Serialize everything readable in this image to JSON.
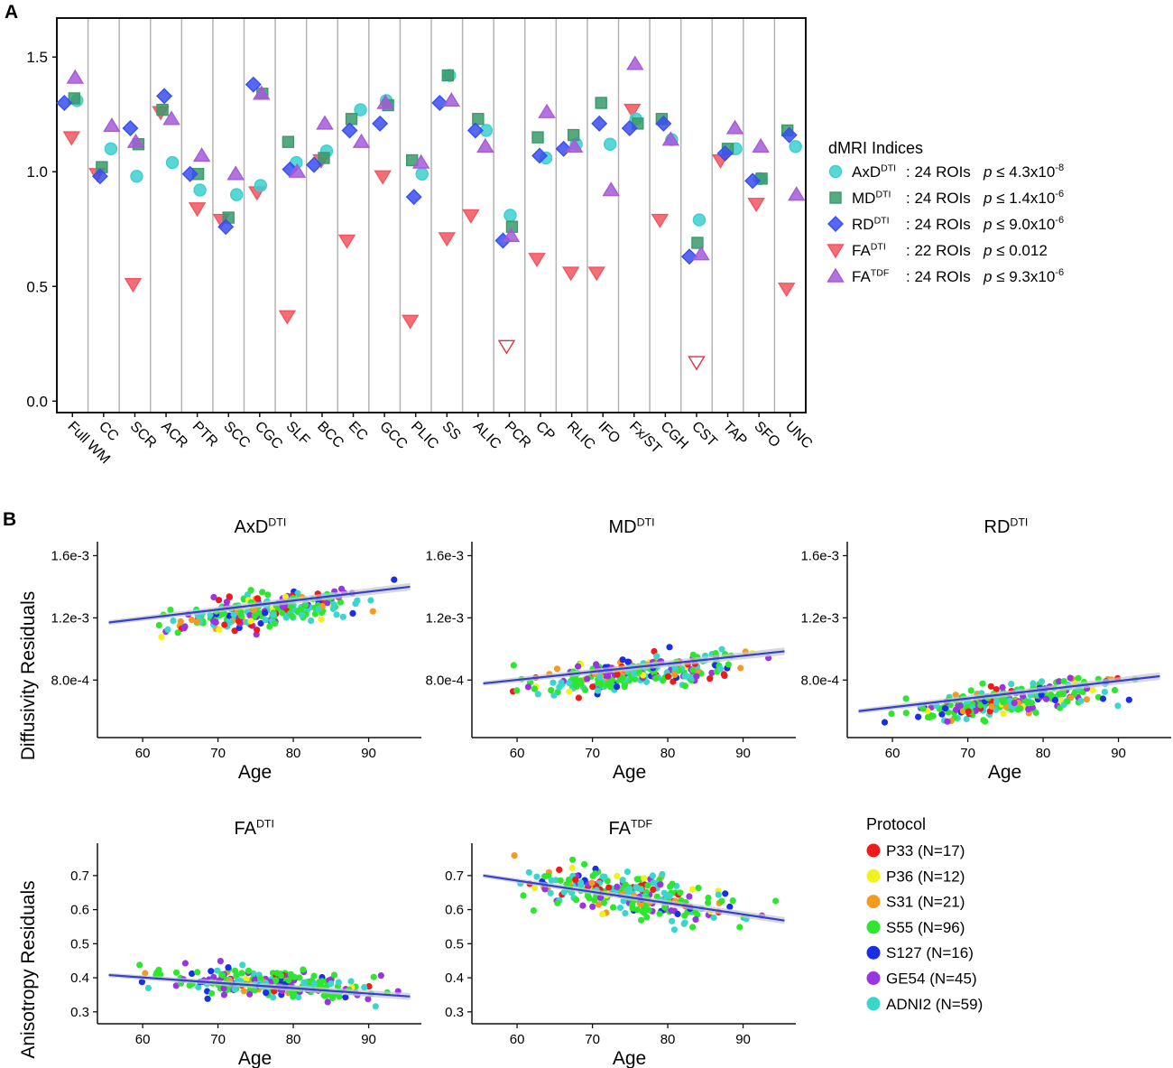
{
  "panel_labels": {
    "a": "A",
    "b": "B"
  },
  "colors": {
    "AxD": "#3ccfcf",
    "MD": "#3a9a6a",
    "RD": "#3a4ef0",
    "FAdti": "#f25560",
    "FAtdf": "#a55bd8",
    "fit_line": "#3340d0",
    "fit_band": "#c8c8cc",
    "grid": "#b3b3b3"
  },
  "chart_data": [
    {
      "type": "scatter",
      "id": "panel-a",
      "title": "",
      "xlabel": "",
      "ylabel": "",
      "ylim": [
        -0.05,
        1.67
      ],
      "y_ticks": [
        "0.0",
        "0.5",
        "1.0",
        "1.5"
      ],
      "y_tick_values": [
        0,
        0.5,
        1.0,
        1.5
      ],
      "categories": [
        "Full WM",
        "CC",
        "SCR",
        "ACR",
        "PTR",
        "SCC",
        "CGC",
        "SLF",
        "BCC",
        "EC",
        "GCC",
        "PLIC",
        "SS",
        "ALIC",
        "PCR",
        "CP",
        "RLIC",
        "IFO",
        "Fx/ST",
        "CGH",
        "CST",
        "TAP",
        "SFO",
        "UNC"
      ],
      "legend": {
        "title": "dMRI Indices",
        "entries": [
          {
            "key": "AxD",
            "base": "AxD",
            "sup": "DTI",
            "rois": ": 24 ROIs",
            "p_prefix": "p",
            "p_text": " ≤ 4.3x10",
            "p_exp": "-8"
          },
          {
            "key": "MD",
            "base": "MD",
            "sup": "DTI",
            "rois": ": 24 ROIs",
            "p_prefix": "p",
            "p_text": " ≤ 1.4x10",
            "p_exp": "-6"
          },
          {
            "key": "RD",
            "base": "RD",
            "sup": "DTI",
            "rois": ": 24 ROIs",
            "p_prefix": "p",
            "p_text": " ≤ 9.0x10",
            "p_exp": "-6"
          },
          {
            "key": "FAdti",
            "base": "FA",
            "sup": "DTI",
            "rois": ": 22 ROIs",
            "p_prefix": "p",
            "p_text": " ≤ 0.012",
            "p_exp": ""
          },
          {
            "key": "FAtdf",
            "base": "FA",
            "sup": "TDF",
            "rois": ": 24 ROIs",
            "p_prefix": "p",
            "p_text": " ≤ 9.3x10",
            "p_exp": "-6"
          }
        ]
      },
      "series": [
        {
          "name": "AxD",
          "shape": "circle",
          "values": [
            1.31,
            1.1,
            0.98,
            1.04,
            0.92,
            0.9,
            0.94,
            1.04,
            1.09,
            1.27,
            1.31,
            0.99,
            1.42,
            1.18,
            0.81,
            1.06,
            1.12,
            1.12,
            1.23,
            1.14,
            0.79,
            1.1,
            0.97,
            1.11
          ]
        },
        {
          "name": "MD",
          "shape": "square",
          "values": [
            1.32,
            1.02,
            1.12,
            1.27,
            0.99,
            0.8,
            1.34,
            1.13,
            1.06,
            1.23,
            1.29,
            1.05,
            1.42,
            1.23,
            0.76,
            1.15,
            1.16,
            1.3,
            1.21,
            1.23,
            0.69,
            1.1,
            0.97,
            1.18
          ]
        },
        {
          "name": "RD",
          "shape": "diamond",
          "values": [
            1.3,
            0.98,
            1.19,
            1.33,
            0.99,
            0.76,
            1.38,
            1.01,
            1.03,
            1.18,
            1.21,
            0.89,
            1.3,
            1.18,
            0.7,
            1.07,
            1.1,
            1.21,
            1.19,
            1.21,
            0.63,
            1.08,
            0.96,
            1.16
          ]
        },
        {
          "name": "FAdti",
          "shape": "triangle-down",
          "values": [
            1.15,
            0.99,
            0.51,
            1.26,
            0.84,
            0.79,
            0.91,
            0.37,
            1.05,
            0.7,
            0.98,
            0.35,
            0.71,
            0.81,
            0.24,
            0.62,
            0.56,
            0.56,
            1.27,
            0.79,
            0.17,
            1.05,
            0.86,
            0.49
          ],
          "hollow_index": [
            14,
            20
          ]
        },
        {
          "name": "FAtdf",
          "shape": "triangle-up",
          "values": [
            1.41,
            1.2,
            1.13,
            1.23,
            1.07,
            0.99,
            1.34,
            1.0,
            1.21,
            1.13,
            1.3,
            1.04,
            1.31,
            1.11,
            0.72,
            1.26,
            1.11,
            0.92,
            1.47,
            1.14,
            0.64,
            1.19,
            1.11,
            0.9
          ]
        }
      ]
    },
    {
      "type": "scatter",
      "id": "axd",
      "title_base": "AxD",
      "title_sup": "DTI",
      "xlabel": "Age",
      "ylabel": "Diffusivity Residuals",
      "xlim": [
        54,
        97
      ],
      "ylim": [
        0.00043,
        0.00169
      ],
      "x_ticks": [
        "60",
        "70",
        "80",
        "90"
      ],
      "x_tick_values": [
        60,
        70,
        80,
        90
      ],
      "y_ticks": [
        "8.0e-4",
        "1.2e-3",
        "1.6e-3"
      ],
      "y_tick_values": [
        0.0008,
        0.0012,
        0.0016
      ],
      "fit": {
        "x": [
          55.5,
          95.5
        ],
        "y": [
          0.00117,
          0.0014
        ]
      },
      "center": 0.00122,
      "spread": 7.5e-05,
      "slope": 5.75e-06,
      "seed": 11
    },
    {
      "type": "scatter",
      "id": "md",
      "title_base": "MD",
      "title_sup": "DTI",
      "xlabel": "Age",
      "ylabel": "",
      "xlim": [
        54,
        97
      ],
      "ylim": [
        0.00043,
        0.00169
      ],
      "x_ticks": [
        "60",
        "70",
        "80",
        "90"
      ],
      "x_tick_values": [
        60,
        70,
        80,
        90
      ],
      "y_ticks": [
        "8.0e-4",
        "1.2e-3",
        "1.6e-3"
      ],
      "y_tick_values": [
        0.0008,
        0.0012,
        0.0016
      ],
      "fit": {
        "x": [
          55.5,
          95.5
        ],
        "y": [
          0.000778,
          0.000985
        ]
      },
      "center": 0.00082,
      "spread": 7.2e-05,
      "slope": 5.2e-06,
      "seed": 23
    },
    {
      "type": "scatter",
      "id": "rd",
      "title_base": "RD",
      "title_sup": "DTI",
      "xlabel": "Age",
      "ylabel": "",
      "xlim": [
        54,
        97
      ],
      "ylim": [
        0.00043,
        0.00169
      ],
      "x_ticks": [
        "60",
        "70",
        "80",
        "90"
      ],
      "x_tick_values": [
        60,
        70,
        80,
        90
      ],
      "y_ticks": [
        "8.0e-4",
        "1.2e-3",
        "1.6e-3"
      ],
      "y_tick_values": [
        0.0008,
        0.0012,
        0.0016
      ],
      "fit": {
        "x": [
          55.5,
          95.5
        ],
        "y": [
          0.0006,
          0.000825
        ]
      },
      "center": 0.00065,
      "spread": 7.2e-05,
      "slope": 5.6e-06,
      "seed": 37
    },
    {
      "type": "scatter",
      "id": "fadti",
      "title_base": "FA",
      "title_sup": "DTI",
      "xlabel": "Age",
      "ylabel": "Anisotropy Residuals",
      "xlim": [
        54,
        97
      ],
      "ylim": [
        0.265,
        0.795
      ],
      "x_ticks": [
        "60",
        "70",
        "80",
        "90"
      ],
      "x_tick_values": [
        60,
        70,
        80,
        90
      ],
      "y_ticks": [
        "0.3",
        "0.4",
        "0.5",
        "0.6",
        "0.7"
      ],
      "y_tick_values": [
        0.3,
        0.4,
        0.5,
        0.6,
        0.7
      ],
      "fit": {
        "x": [
          55.5,
          95.5
        ],
        "y": [
          0.408,
          0.345
        ]
      },
      "center": 0.39,
      "spread": 0.028,
      "slope": -0.00158,
      "seed": 51
    },
    {
      "type": "scatter",
      "id": "fatdf",
      "title_base": "FA",
      "title_sup": "TDF",
      "xlabel": "Age",
      "ylabel": "",
      "xlim": [
        54,
        97
      ],
      "ylim": [
        0.265,
        0.795
      ],
      "x_ticks": [
        "60",
        "70",
        "80",
        "90"
      ],
      "x_tick_values": [
        60,
        70,
        80,
        90
      ],
      "y_ticks": [
        "0.3",
        "0.4",
        "0.5",
        "0.6",
        "0.7"
      ],
      "y_tick_values": [
        0.3,
        0.4,
        0.5,
        0.6,
        0.7
      ],
      "fit": {
        "x": [
          55.5,
          95.5
        ],
        "y": [
          0.7,
          0.568
        ]
      },
      "center": 0.655,
      "spread": 0.045,
      "slope": -0.0033,
      "seed": 67
    }
  ],
  "protocols": {
    "title": "Protocol",
    "items": [
      {
        "label": "P33 (N=17)",
        "color": "#f01a1a"
      },
      {
        "label": "P36 (N=12)",
        "color": "#f2f21a"
      },
      {
        "label": "S31 (N=21)",
        "color": "#f59a20"
      },
      {
        "label": "S55 (N=96)",
        "color": "#2ee62e"
      },
      {
        "label": "S127 (N=16)",
        "color": "#1a2ee8"
      },
      {
        "label": "GE54 (N=45)",
        "color": "#9a33e0"
      },
      {
        "label": "ADNI2 (N=59)",
        "color": "#3ad6cc"
      }
    ]
  }
}
